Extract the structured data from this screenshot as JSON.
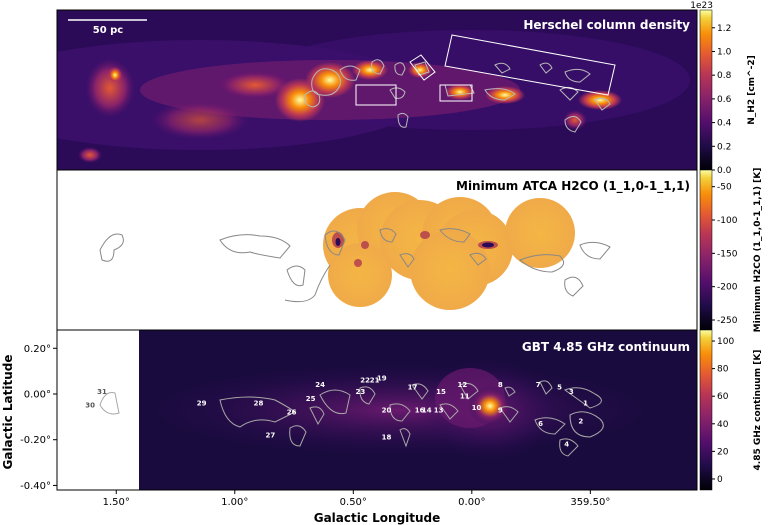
{
  "figure": {
    "scale_bar_label": "50 pc",
    "x_axis_title": "Galactic Longitude",
    "y_axis_title": "Galactic Latitude",
    "x_ticks": [
      "1.50°",
      "1.00°",
      "0.50°",
      "0.00°",
      "359.50°"
    ],
    "y_ticks": [
      "0.20°",
      "0.00°",
      "-0.20°",
      "-0.40°"
    ]
  },
  "chart_data": [
    {
      "type": "heatmap",
      "title": "Herschel column density",
      "colorbar": {
        "label": "N_H2 [cm^-2]",
        "multiplier": "1e23",
        "ticks": [
          "1.2",
          "1.0",
          "0.8",
          "0.6",
          "0.4",
          "0.2",
          "0.0"
        ],
        "range": [
          0,
          1.35
        ],
        "colormap": "inferno"
      },
      "x_range_deg": [
        1.75,
        -0.95
      ],
      "y_range_deg": [
        -0.42,
        0.28
      ]
    },
    {
      "type": "heatmap",
      "title": "Minimum ATCA H2CO (1_1,0-1_1,1)",
      "colorbar": {
        "label": "Minimum H2CO (1_1,0-1_1,1) [K]",
        "ticks": [
          "-50",
          "-100",
          "-150",
          "-200",
          "-250"
        ],
        "range": [
          -265,
          -25
        ],
        "colormap": "inferno"
      }
    },
    {
      "type": "heatmap",
      "title": "GBT 4.85 GHz continuum",
      "colorbar": {
        "label": "4.85 GHz continuum [K]",
        "ticks": [
          "100",
          "80",
          "60",
          "40",
          "20",
          "0"
        ],
        "range": [
          -8,
          108
        ],
        "colormap": "inferno"
      },
      "region_labels": [
        {
          "id": "1",
          "l": -0.48,
          "b": -0.05
        },
        {
          "id": "2",
          "l": -0.46,
          "b": -0.13
        },
        {
          "id": "3",
          "l": -0.42,
          "b": 0.0
        },
        {
          "id": "4",
          "l": -0.4,
          "b": -0.23
        },
        {
          "id": "5",
          "l": -0.37,
          "b": 0.02
        },
        {
          "id": "6",
          "l": -0.29,
          "b": -0.14
        },
        {
          "id": "7",
          "l": -0.28,
          "b": 0.03
        },
        {
          "id": "8",
          "l": -0.12,
          "b": 0.03
        },
        {
          "id": "9",
          "l": -0.12,
          "b": -0.08
        },
        {
          "id": "10",
          "l": -0.02,
          "b": -0.07
        },
        {
          "id": "11",
          "l": 0.03,
          "b": -0.02
        },
        {
          "id": "12",
          "l": 0.04,
          "b": 0.03
        },
        {
          "id": "13",
          "l": 0.14,
          "b": -0.08
        },
        {
          "id": "14",
          "l": 0.19,
          "b": -0.08
        },
        {
          "id": "15",
          "l": 0.13,
          "b": 0.0
        },
        {
          "id": "16",
          "l": 0.22,
          "b": -0.08
        },
        {
          "id": "17",
          "l": 0.25,
          "b": 0.02
        },
        {
          "id": "18",
          "l": 0.36,
          "b": -0.2
        },
        {
          "id": "19",
          "l": 0.38,
          "b": 0.06
        },
        {
          "id": "20",
          "l": 0.36,
          "b": -0.08
        },
        {
          "id": "21",
          "l": 0.41,
          "b": 0.05
        },
        {
          "id": "22",
          "l": 0.45,
          "b": 0.05
        },
        {
          "id": "23",
          "l": 0.47,
          "b": 0.0
        },
        {
          "id": "24",
          "l": 0.64,
          "b": 0.03
        },
        {
          "id": "25",
          "l": 0.68,
          "b": -0.03
        },
        {
          "id": "26",
          "l": 0.76,
          "b": -0.09
        },
        {
          "id": "27",
          "l": 0.85,
          "b": -0.19
        },
        {
          "id": "28",
          "l": 0.9,
          "b": -0.05
        },
        {
          "id": "29",
          "l": 1.14,
          "b": -0.05
        },
        {
          "id": "30",
          "l": 1.61,
          "b": -0.06
        },
        {
          "id": "31",
          "l": 1.56,
          "b": 0.0
        }
      ]
    }
  ]
}
